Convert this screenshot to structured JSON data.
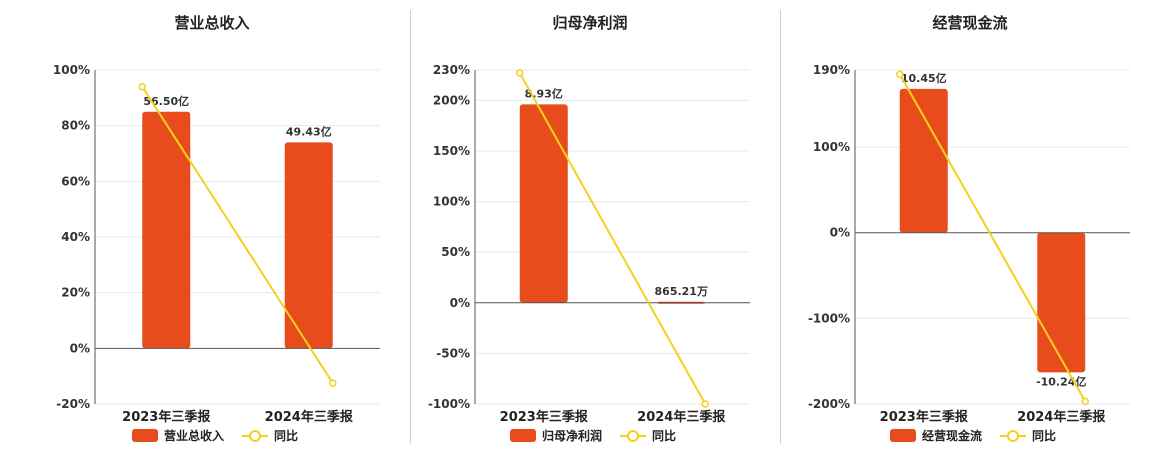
{
  "colors": {
    "bar": "#e84c1d",
    "line": "#f2d21b",
    "grid": "#e9e9e9",
    "axis": "#555555"
  },
  "chart_data": [
    {
      "type": "bar",
      "title": "营业总收入",
      "categories": [
        "2023年三季报",
        "2024年三季报"
      ],
      "bar_values": [
        85,
        74
      ],
      "bar_labels": [
        "56.50亿",
        "49.43亿"
      ],
      "line_values": [
        94,
        -12.5
      ],
      "yticks": [
        100,
        80,
        60,
        40,
        20,
        0,
        -20
      ],
      "ylim": [
        -20,
        100
      ],
      "legend": [
        "营业总收入",
        "同比"
      ]
    },
    {
      "type": "bar",
      "title": "归母净利润",
      "categories": [
        "2023年三季报",
        "2024年三季报"
      ],
      "bar_values": [
        196,
        1
      ],
      "bar_labels": [
        "8.93亿",
        "865.21万"
      ],
      "line_values": [
        227,
        -100
      ],
      "yticks": [
        230,
        200,
        150,
        100,
        50,
        0,
        -50,
        -100
      ],
      "ylim": [
        -100,
        230
      ],
      "legend": [
        "归母净利润",
        "同比"
      ]
    },
    {
      "type": "bar",
      "title": "经营现金流",
      "categories": [
        "2023年三季报",
        "2024年三季报"
      ],
      "bar_values": [
        168,
        -163
      ],
      "bar_labels": [
        "10.45亿",
        "-10.24亿"
      ],
      "line_values": [
        185,
        -197
      ],
      "yticks": [
        190,
        100,
        0,
        -100,
        -200
      ],
      "ylim": [
        -200,
        190
      ],
      "legend": [
        "经营现金流",
        "同比"
      ]
    }
  ]
}
